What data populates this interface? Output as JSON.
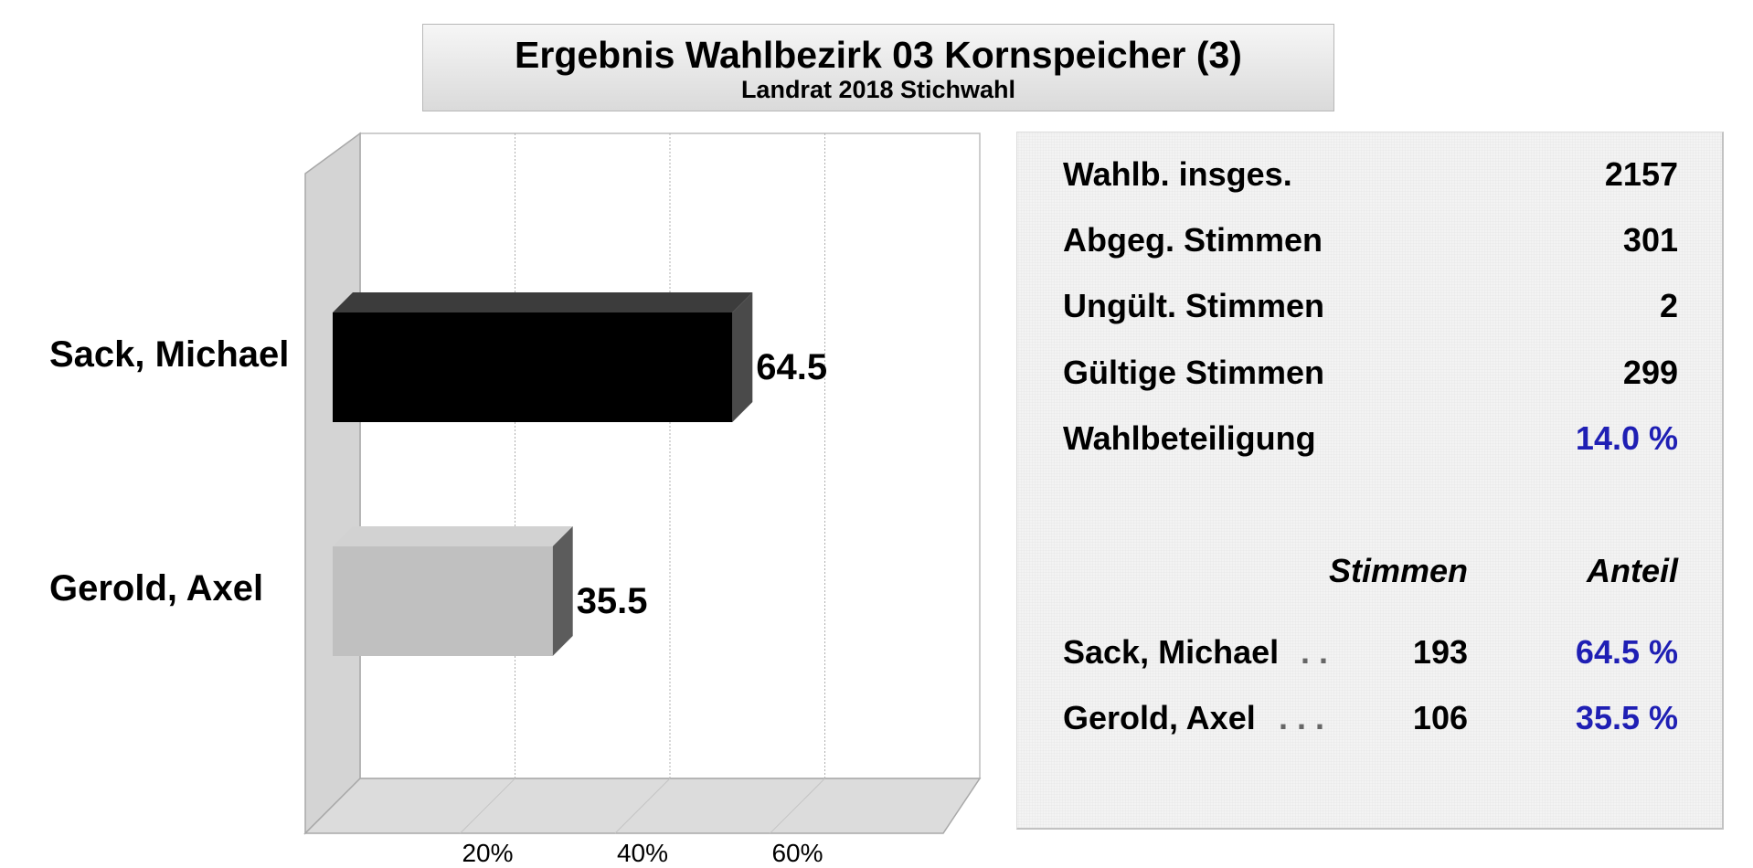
{
  "title": "Ergebnis Wahlbezirk 03 Kornspeicher (3)",
  "subtitle": "Landrat 2018 Stichwahl",
  "chart_data": {
    "type": "bar",
    "orientation": "horizontal",
    "categories": [
      "Sack, Michael",
      "Gerold, Axel"
    ],
    "values": [
      64.5,
      35.5
    ],
    "value_labels": [
      "64.5",
      "35.5"
    ],
    "bar_colors": [
      "#000000",
      "#c0c0c0"
    ],
    "xlim": [
      0,
      80
    ],
    "xticks": [
      20,
      40,
      60
    ],
    "xtick_labels": [
      "20%",
      "40%",
      "60%"
    ],
    "grid": true
  },
  "stats": {
    "rows": [
      {
        "label": "Wahlb. insges.",
        "value": "2157"
      },
      {
        "label": "Abgeg. Stimmen",
        "value": "301"
      },
      {
        "label": "Ungült. Stimmen",
        "value": "2"
      },
      {
        "label": "Gültige Stimmen",
        "value": "299"
      },
      {
        "label": "Wahlbeteiligung",
        "value": "14.0 %"
      }
    ],
    "headers": {
      "votes": "Stimmen",
      "share": "Anteil"
    },
    "candidates": [
      {
        "name": "Sack, Michael",
        "dots": ". .",
        "votes": "193",
        "share": "64.5 %"
      },
      {
        "name": "Gerold, Axel",
        "dots": ". . .",
        "votes": "106",
        "share": "35.5 %"
      }
    ],
    "accent_color": "#1f1fb4"
  }
}
